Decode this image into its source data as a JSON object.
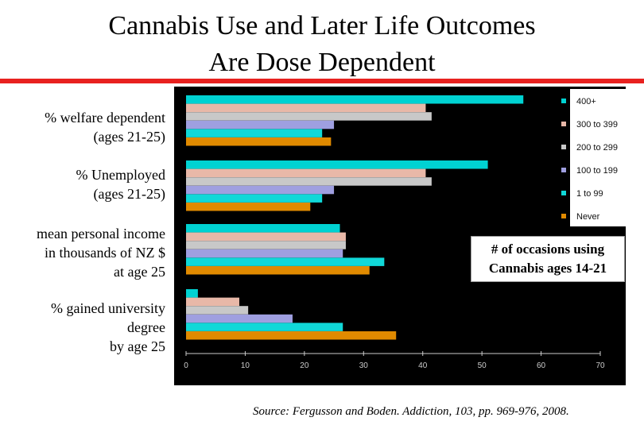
{
  "title_line1": "Cannabis Use and Later Life Outcomes",
  "title_line2": "Are Dose Dependent",
  "colors": {
    "rule": "#e8211f",
    "background": "#000000",
    "axis_text": "#cccccc"
  },
  "note": {
    "line1": "# of occasions using",
    "line2": "Cannabis ages 14-21"
  },
  "source": "Source: Fergusson and Boden. Addiction, 103, pp. 969-976, 2008.",
  "chart_data": {
    "type": "bar",
    "orientation": "horizontal",
    "title": "Cannabis Use and Later Life Outcomes Are Dose Dependent",
    "xlim": [
      0,
      70
    ],
    "xticks": [
      0,
      10,
      20,
      30,
      40,
      50,
      60,
      70
    ],
    "legend_title": "# of occasions using Cannabis ages 14-21",
    "legend_position": "right",
    "categories": [
      "% welfare dependent\n(ages 21-25)",
      "% Unemployed\n(ages 21-25)",
      "mean personal income\nin thousands of NZ $\nat age 25",
      "% gained university\ndegree\nby age 25"
    ],
    "series": [
      {
        "name": "400+",
        "color": "#00d2d2",
        "values": [
          57,
          51,
          26,
          2
        ]
      },
      {
        "name": "300 to 399",
        "color": "#e8b8a8",
        "values": [
          40.5,
          40.5,
          27,
          9
        ]
      },
      {
        "name": "200 to 299",
        "color": "#c8c8c8",
        "values": [
          41.5,
          41.5,
          27,
          10.5
        ]
      },
      {
        "name": "100 to 199",
        "color": "#9f9fe0",
        "values": [
          25,
          25,
          26.5,
          18
        ]
      },
      {
        "name": "1 to 99",
        "color": "#10d8d8",
        "values": [
          23,
          23,
          33.5,
          26.5
        ]
      },
      {
        "name": "Never",
        "color": "#e08a00",
        "values": [
          24.5,
          21,
          31,
          35.5
        ]
      }
    ]
  }
}
